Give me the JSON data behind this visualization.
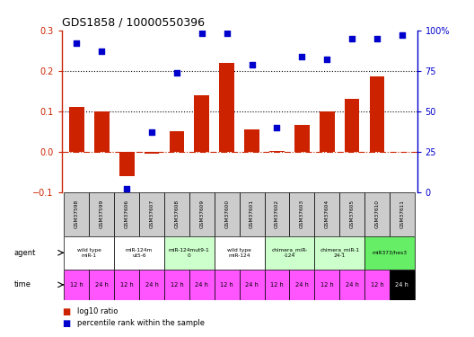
{
  "title": "GDS1858 / 10000550396",
  "samples": [
    "GSM37598",
    "GSM37599",
    "GSM37606",
    "GSM37607",
    "GSM37608",
    "GSM37609",
    "GSM37600",
    "GSM37601",
    "GSM37602",
    "GSM37603",
    "GSM37604",
    "GSM37605",
    "GSM37610",
    "GSM37611"
  ],
  "log10_ratio": [
    0.11,
    0.1,
    -0.06,
    -0.005,
    0.05,
    0.14,
    0.22,
    0.055,
    0.002,
    0.065,
    0.1,
    0.13,
    0.185,
    0.0
  ],
  "percentile_rank_pct": [
    92,
    87,
    2,
    37,
    74,
    98,
    98,
    79,
    40,
    84,
    82,
    95,
    95,
    97
  ],
  "bar_color": "#cc2200",
  "scatter_color": "#0000cc",
  "ylim_left": [
    -0.1,
    0.3
  ],
  "ylim_right": [
    0,
    100
  ],
  "yticks_left": [
    -0.1,
    0.0,
    0.1,
    0.2,
    0.3
  ],
  "yticks_right": [
    0,
    25,
    50,
    75,
    100
  ],
  "agent_groups": [
    {
      "label": "wild type\nmiR-1",
      "cols": [
        0,
        1
      ],
      "color": "#ffffff"
    },
    {
      "label": "miR-124m\nut5-6",
      "cols": [
        2,
        3
      ],
      "color": "#ffffff"
    },
    {
      "label": "miR-124mut9-1\n0",
      "cols": [
        4,
        5
      ],
      "color": "#ccffcc"
    },
    {
      "label": "wild type\nmiR-124",
      "cols": [
        6,
        7
      ],
      "color": "#ffffff"
    },
    {
      "label": "chimera_miR-\n-124",
      "cols": [
        8,
        9
      ],
      "color": "#ccffcc"
    },
    {
      "label": "chimera_miR-1\n24-1",
      "cols": [
        10,
        11
      ],
      "color": "#ccffcc"
    },
    {
      "label": "miR373/hes3",
      "cols": [
        12,
        13
      ],
      "color": "#66ee66"
    }
  ],
  "time_labels": [
    "12 h",
    "24 h",
    "12 h",
    "24 h",
    "12 h",
    "24 h",
    "12 h",
    "24 h",
    "12 h",
    "24 h",
    "12 h",
    "24 h",
    "12 h",
    "24 h"
  ],
  "time_bg": [
    "#ff55ff",
    "#ff55ff",
    "#ff55ff",
    "#ff55ff",
    "#ff55ff",
    "#ff55ff",
    "#ff55ff",
    "#ff55ff",
    "#ff55ff",
    "#ff55ff",
    "#ff55ff",
    "#ff55ff",
    "#ff55ff",
    "#000000"
  ],
  "time_fg": [
    "#000000",
    "#000000",
    "#000000",
    "#000000",
    "#000000",
    "#000000",
    "#000000",
    "#000000",
    "#000000",
    "#000000",
    "#000000",
    "#000000",
    "#000000",
    "#ffffff"
  ],
  "bar_color_left": "#cc2200",
  "bar_color_right": "#0000cc",
  "legend_items": [
    {
      "label": "log10 ratio",
      "color": "#cc2200"
    },
    {
      "label": "percentile rank within the sample",
      "color": "#0000cc"
    }
  ],
  "background_color": "#ffffff",
  "sample_bg_color": "#cccccc"
}
